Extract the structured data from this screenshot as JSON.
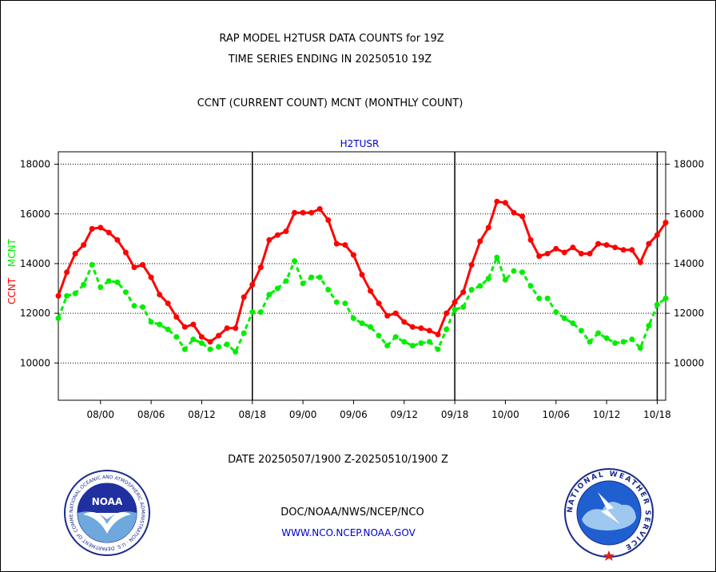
{
  "header": {
    "line1": "RAP MODEL H2TUSR DATA COUNTS for 19Z",
    "line2": "TIME SERIES ENDING IN 20250510 19Z",
    "line3": "CCNT (CURRENT COUNT) MCNT (MONTHLY COUNT)"
  },
  "footer": {
    "date_range": "DATE 20250507/1900 Z-20250510/1900 Z",
    "org": "DOC/NOAA/NWS/NCEP/NCO",
    "url": "WWW.NCO.NCEP.NOAA.GOV"
  },
  "logos": {
    "noaa_text": "NOAA",
    "noaa_ring": "NATIONAL OCEANIC AND ATMOSPHERIC ADMINISTRATION · U.S. DEPARTMENT OF COMMERCE ·",
    "nws_ring": "NATIONAL WEATHER SERVICE"
  },
  "colors": {
    "ccnt": "#ff0000",
    "mcnt": "#00ee00",
    "label_blue": "#0000cc"
  },
  "chart_data": {
    "type": "line",
    "title": "H2TUSR",
    "ylabel_ccnt": "CCNT",
    "ylabel_mcnt": "MCNT",
    "ylim": [
      8500,
      18500
    ],
    "yticks": [
      10000,
      12000,
      14000,
      16000,
      18000
    ],
    "ytick_labels": [
      "10000",
      "12000",
      "14000",
      "16000",
      "18000"
    ],
    "xlim": [
      0,
      72
    ],
    "xticks": [
      5,
      11,
      17,
      23,
      29,
      35,
      41,
      47,
      53,
      59,
      65,
      71
    ],
    "xtick_labels": [
      "08/00",
      "08/06",
      "08/12",
      "08/18",
      "09/00",
      "09/06",
      "09/12",
      "09/18",
      "10/00",
      "10/06",
      "10/12",
      "10/18"
    ],
    "day_boundaries": [
      23,
      47,
      71
    ],
    "grid": true,
    "x": [
      0,
      1,
      2,
      3,
      4,
      5,
      6,
      7,
      8,
      9,
      10,
      11,
      12,
      13,
      14,
      15,
      16,
      17,
      18,
      19,
      20,
      21,
      22,
      23,
      24,
      25,
      26,
      27,
      28,
      29,
      30,
      31,
      32,
      33,
      34,
      35,
      36,
      37,
      38,
      39,
      40,
      41,
      42,
      43,
      44,
      45,
      46,
      47,
      48,
      49,
      50,
      51,
      52,
      53,
      54,
      55,
      56,
      57,
      58,
      59,
      60,
      61,
      62,
      63,
      64,
      65,
      66,
      67,
      68,
      69,
      70,
      71,
      72
    ],
    "series": [
      {
        "name": "CCNT",
        "values": [
          12700,
          13650,
          14400,
          14750,
          15400,
          15450,
          15250,
          14950,
          14450,
          13850,
          13950,
          13450,
          12750,
          12400,
          11850,
          11450,
          11550,
          11050,
          10850,
          11100,
          11400,
          11400,
          12650,
          13150,
          13850,
          14950,
          15150,
          15300,
          16050,
          16050,
          16050,
          16200,
          15750,
          14800,
          14750,
          14350,
          13550,
          12900,
          12400,
          11900,
          12000,
          11650,
          11450,
          11400,
          11300,
          11150,
          12000,
          12450,
          12850,
          13950,
          14900,
          15450,
          16500,
          16450,
          16050,
          15900,
          14950,
          14300,
          14400,
          14600,
          14450,
          14650,
          14400,
          14400,
          14800,
          14750,
          14650,
          14550,
          14550,
          14050,
          14800,
          15150,
          15650
        ]
      },
      {
        "name": "MCNT",
        "values": [
          11800,
          12700,
          12800,
          13150,
          13950,
          13050,
          13300,
          13250,
          12850,
          12300,
          12250,
          11650,
          11550,
          11350,
          11050,
          10550,
          10950,
          10800,
          10550,
          10650,
          10750,
          10450,
          11200,
          12050,
          12050,
          12750,
          13000,
          13300,
          14100,
          13200,
          13450,
          13450,
          12950,
          12450,
          12400,
          11800,
          11600,
          11450,
          11100,
          10700,
          11050,
          10850,
          10700,
          10800,
          10850,
          10550,
          11350,
          12150,
          12250,
          12950,
          13100,
          13400,
          14250,
          13350,
          13700,
          13650,
          13100,
          12600,
          12600,
          12050,
          11800,
          11600,
          11300,
          10850,
          11200,
          11000,
          10800,
          10850,
          10950,
          10600,
          11500,
          12350,
          12600
        ]
      }
    ]
  }
}
